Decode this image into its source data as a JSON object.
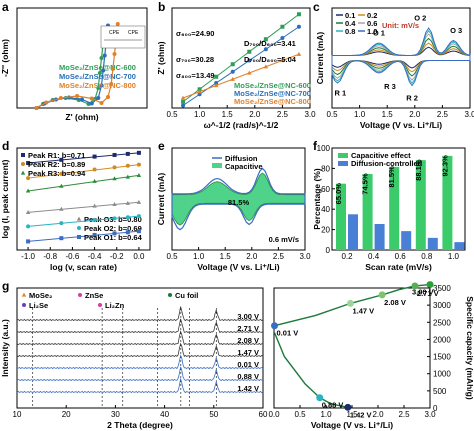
{
  "chart_data": [
    {
      "panel": "a",
      "type": "scatter",
      "xlabel": "Z' (ohm)",
      "ylabel": "-Z'' (ohm)",
      "inset_labels": [
        "CPE",
        "CPE"
      ],
      "series": [
        {
          "name": "MoSe₂/ZnSe@NC-600",
          "color": "#2e9e57",
          "x": [
            12,
            16,
            22,
            30,
            38,
            44,
            48,
            50,
            51,
            52,
            53,
            54
          ],
          "y": [
            0,
            8,
            16,
            20,
            16,
            8,
            18,
            40,
            70,
            100,
            130,
            160
          ]
        },
        {
          "name": "MoSe₂/ZnSe@NC-700",
          "color": "#2a6fb8",
          "x": [
            12,
            17,
            24,
            32,
            40,
            46,
            50,
            52,
            53,
            54,
            55,
            56
          ],
          "y": [
            0,
            9,
            17,
            21,
            17,
            9,
            20,
            45,
            75,
            105,
            135,
            165
          ]
        },
        {
          "name": "MoSe₂/ZnSe@NC-800",
          "color": "#e0812c",
          "x": [
            12,
            18,
            27,
            37,
            46,
            52,
            56,
            58,
            59,
            60,
            61,
            62
          ],
          "y": [
            0,
            11,
            20,
            24,
            19,
            10,
            22,
            48,
            78,
            108,
            138,
            168
          ]
        }
      ]
    },
    {
      "panel": "b",
      "type": "scatter",
      "xlabel": "ω^-1/2 (rad/s)^-1/2",
      "ylabel": "Z' (ohm)",
      "xlim": [
        0.5,
        3.0
      ],
      "xticks": [
        "0.5",
        "1.0",
        "1.5",
        "2.0",
        "2.5",
        "3.0"
      ],
      "annotations": [
        "σ₆₀₀=24.90",
        "σ₇₀₀=30.28",
        "σ₈₀₀=13.49",
        "D₇₀₀/D₆₀₀=3.41",
        "D₇₀₀/D₈₀₀=5.04"
      ],
      "series": [
        {
          "name": "MoSe₂/ZnSe@NC-600",
          "color": "#2e9e57",
          "x": [
            0.7,
            1.0,
            1.3,
            1.6,
            1.9,
            2.2,
            2.5,
            2.8
          ],
          "y": [
            0.05,
            0.15,
            0.25,
            0.35,
            0.45,
            0.55,
            0.65,
            0.75
          ]
        },
        {
          "name": "MoSe₂/ZnSe@NC-700",
          "color": "#2a6fb8",
          "x": [
            0.7,
            1.0,
            1.3,
            1.6,
            1.9,
            2.2,
            2.5,
            2.8
          ],
          "y": [
            0.02,
            0.11,
            0.2,
            0.29,
            0.38,
            0.47,
            0.56,
            0.65
          ]
        },
        {
          "name": "MoSe₂/ZnSe@NC-800",
          "color": "#e0812c",
          "x": [
            0.7,
            1.0,
            1.3,
            1.6,
            1.9,
            2.2,
            2.5,
            2.8
          ],
          "y": [
            0.08,
            0.13,
            0.18,
            0.23,
            0.28,
            0.33,
            0.38,
            0.43
          ]
        }
      ]
    },
    {
      "panel": "c",
      "type": "line",
      "xlabel": "Voltage (V vs. Li⁺/Li)",
      "ylabel": "Current (mA)",
      "xlim": [
        0.5,
        3.0
      ],
      "xticks": [
        "0.5",
        "1.0",
        "1.5",
        "2.0",
        "2.5",
        "3.0"
      ],
      "legend_title": "Unit: mV/s",
      "peak_labels": [
        "O 1",
        "O 2",
        "O 3",
        "R 1",
        "R 2",
        "R 3"
      ],
      "series": [
        {
          "name": "0.1",
          "color": "#1d2a6b",
          "scale": 0.3
        },
        {
          "name": "0.2",
          "color": "#d08a1e",
          "scale": 0.45
        },
        {
          "name": "0.4",
          "color": "#1b7a3a",
          "scale": 0.62
        },
        {
          "name": "0.6",
          "color": "#a7a7a7",
          "scale": 0.78
        },
        {
          "name": "0.8",
          "color": "#2bb3c0",
          "scale": 0.9
        },
        {
          "name": "1.0",
          "color": "#3a6cc4",
          "scale": 1.0
        }
      ]
    },
    {
      "panel": "d",
      "type": "scatter",
      "xlabel": "log (v, scan rate)",
      "ylabel": "log (I, peak current)",
      "xlim": [
        -1.1,
        0.1
      ],
      "xticks": [
        "-1.0",
        "-0.8",
        "-0.6",
        "-0.4",
        "-0.2",
        "0.0"
      ],
      "x": [
        -1.0,
        -0.7,
        -0.4,
        -0.22,
        -0.1,
        0.0
      ],
      "series": [
        {
          "name": "Peak R1: b=0.71",
          "color": "#1d2a6b",
          "y": [
            0.86,
            0.89,
            0.92,
            0.935,
            0.945,
            0.955
          ]
        },
        {
          "name": "Peak R2: b=0.89",
          "color": "#d08a1e",
          "y": [
            0.72,
            0.76,
            0.8,
            0.82,
            0.835,
            0.845
          ]
        },
        {
          "name": "Peak R3: b=0.94",
          "color": "#2e8b3a",
          "y": [
            0.6,
            0.645,
            0.69,
            0.715,
            0.73,
            0.745
          ]
        },
        {
          "name": "Peak O3: b=0.80",
          "color": "#8c8c8c",
          "y": [
            0.4,
            0.43,
            0.46,
            0.475,
            0.485,
            0.495
          ]
        },
        {
          "name": "Peak O2: b=0.69",
          "color": "#2bb3c0",
          "y": [
            0.27,
            0.3,
            0.33,
            0.345,
            0.355,
            0.365
          ]
        },
        {
          "name": "Peak O1: b=0.64",
          "color": "#3a6cc4",
          "y": [
            0.13,
            0.16,
            0.19,
            0.205,
            0.215,
            0.225
          ]
        }
      ]
    },
    {
      "panel": "e",
      "type": "area",
      "xlabel": "Voltage (V vs. Li⁺/Li)",
      "ylabel": "Current (mA)",
      "xlim": [
        0.5,
        3.0
      ],
      "xticks": [
        "0.5",
        "1.0",
        "1.5",
        "2.0",
        "2.5",
        "3.0"
      ],
      "legend": [
        "Diffusion",
        "Capacitive"
      ],
      "annotation": "81.5%",
      "rate_label": "0.6 mV/s"
    },
    {
      "panel": "f",
      "type": "bar",
      "xlabel": "Scan rate (mV/s)",
      "ylabel": "Percentage (%)",
      "ylim": [
        0,
        100
      ],
      "yticks": [
        "0",
        "20",
        "40",
        "60",
        "80",
        "100"
      ],
      "categories": [
        "0.2",
        "0.4",
        "0.6",
        "0.8",
        "1.0"
      ],
      "series": [
        {
          "name": "Capacitive effect",
          "color": "#3ccb6a",
          "values": [
            65.0,
            74.5,
            81.5,
            88.1,
            92.3
          ]
        },
        {
          "name": "Diffusion-controlled",
          "color": "#4a7fd6",
          "values": [
            35.0,
            25.5,
            18.5,
            11.9,
            7.7
          ]
        }
      ],
      "data_labels": [
        "65.0%",
        "74.5%",
        "81.5%",
        "88.1%",
        "92.3%"
      ]
    },
    {
      "panel": "g-left",
      "type": "line",
      "xlabel": "2 Theta (degree)",
      "ylabel": "Intensity (a.u.)",
      "xlim": [
        10,
        60
      ],
      "xticks": [
        "10",
        "20",
        "30",
        "40",
        "50",
        "60"
      ],
      "legend": [
        "MoSe₂",
        "ZnSe",
        "Cu foil",
        "Li₂Se",
        "Li₂Zn"
      ],
      "series": [
        {
          "name": "3.00 V",
          "color": "#3a3a3a"
        },
        {
          "name": "2.71 V",
          "color": "#3a3a3a"
        },
        {
          "name": "2.08 V",
          "color": "#3a3a3a"
        },
        {
          "name": "1.47 V",
          "color": "#3a3a3a"
        },
        {
          "name": "0.01 V",
          "color": "#3a6cc4"
        },
        {
          "name": "0.88 V",
          "color": "#3a6cc4"
        },
        {
          "name": "1.42 V",
          "color": "#3a6cc4"
        }
      ]
    },
    {
      "panel": "g-right",
      "type": "line",
      "xlabel": "Voltage (V vs. Li⁺/Li)",
      "ylabel": "Specific capacity (mAh/g)",
      "xlim": [
        0.0,
        3.0
      ],
      "ylim": [
        0,
        3500
      ],
      "xticks": [
        "0.0",
        "0.5",
        "1.0",
        "1.5",
        "2.0",
        "2.5",
        "3.0"
      ],
      "yticks": [
        "0",
        "500",
        "1000",
        "1500",
        "2000",
        "2500",
        "3000",
        "3500"
      ],
      "discharge": {
        "x": [
          0.01,
          0.2,
          0.6,
          0.88,
          1.1,
          1.42
        ],
        "y": [
          2200,
          1500,
          700,
          300,
          120,
          20
        ]
      },
      "charge": {
        "x": [
          0.01,
          0.8,
          1.47,
          2.08,
          2.4,
          2.71,
          3.0
        ],
        "y": [
          2400,
          2700,
          3050,
          3300,
          3450,
          3560,
          3600
        ]
      },
      "points": [
        {
          "label": "0.01 V",
          "x": 0.01,
          "y": 2400,
          "color": "#3a6cc4"
        },
        {
          "label": "1.47 V",
          "x": 1.47,
          "y": 3050,
          "color": "#9fd59a"
        },
        {
          "label": "2.08 V",
          "x": 2.08,
          "y": 3300,
          "color": "#7cc56e"
        },
        {
          "label": "2.71 V",
          "x": 2.71,
          "y": 3560,
          "color": "#55b050"
        },
        {
          "label": "3.00 V",
          "x": 3.0,
          "y": 3600,
          "color": "#2e9e3a"
        },
        {
          "label": "0.88 V",
          "x": 0.88,
          "y": 300,
          "color": "#2bb3c0"
        },
        {
          "label": "1.42 V",
          "x": 1.42,
          "y": 20,
          "color": "#1d2a6b"
        }
      ]
    }
  ]
}
